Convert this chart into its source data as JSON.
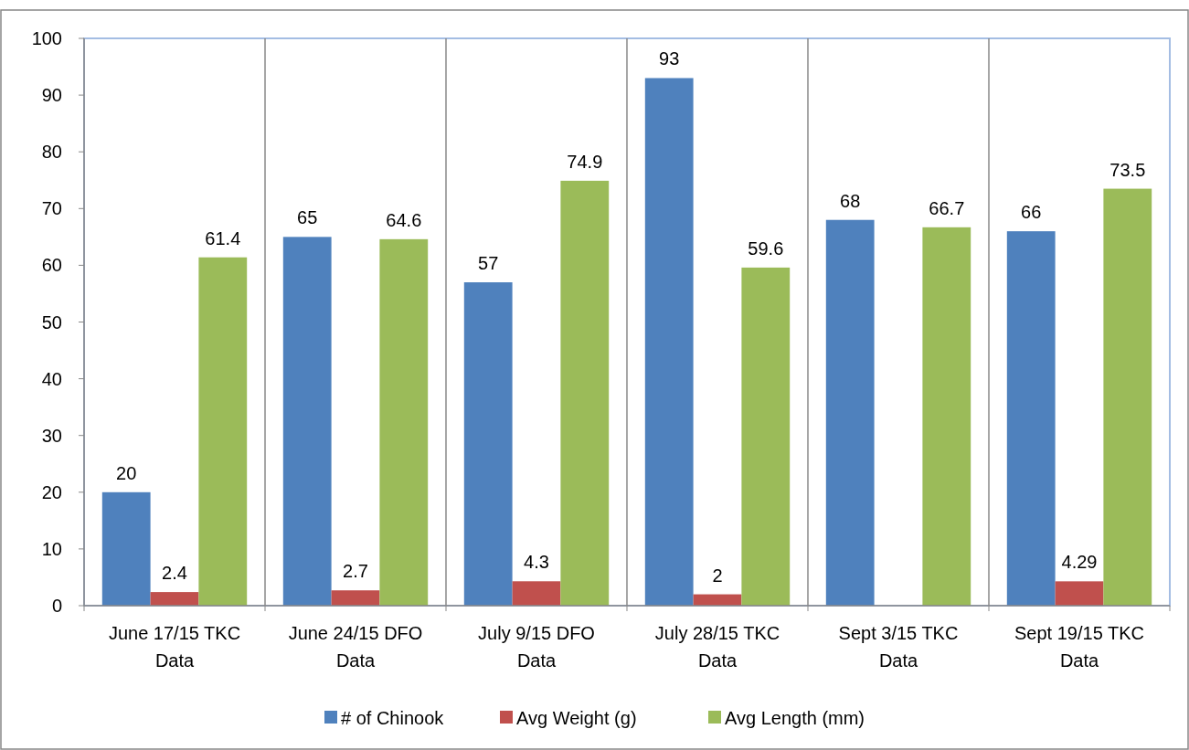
{
  "chart_data": {
    "type": "bar",
    "categories": [
      "June 17/15 TKC Data",
      "June 24/15 DFO Data",
      "July 9/15 DFO Data",
      "July 28/15 TKC Data",
      "Sept 3/15 TKC Data",
      "Sept 19/15 TKC Data"
    ],
    "series": [
      {
        "name": "# of Chinook",
        "color": "#4f81bd",
        "values": [
          20,
          65,
          57,
          93,
          68,
          66
        ],
        "value_labels": [
          "20",
          "65",
          "57",
          "93",
          "68",
          "66"
        ]
      },
      {
        "name": "Avg Weight (g)",
        "color": "#c0504d",
        "values": [
          2.4,
          2.7,
          4.3,
          2,
          null,
          4.29
        ],
        "value_labels": [
          "2.4",
          "2.7",
          "4.3",
          "2",
          null,
          "4.29"
        ]
      },
      {
        "name": "Avg Length (mm)",
        "color": "#9bbb59",
        "values": [
          61.4,
          64.6,
          74.9,
          59.6,
          66.7,
          73.5
        ],
        "value_labels": [
          "61.4",
          "64.6",
          "74.9",
          "59.6",
          "66.7",
          "73.5"
        ]
      }
    ],
    "ylim": [
      0,
      100
    ],
    "yticks": [
      0,
      10,
      20,
      30,
      40,
      50,
      60,
      70,
      80,
      90,
      100
    ],
    "grid": "x",
    "legend": "bottom"
  }
}
